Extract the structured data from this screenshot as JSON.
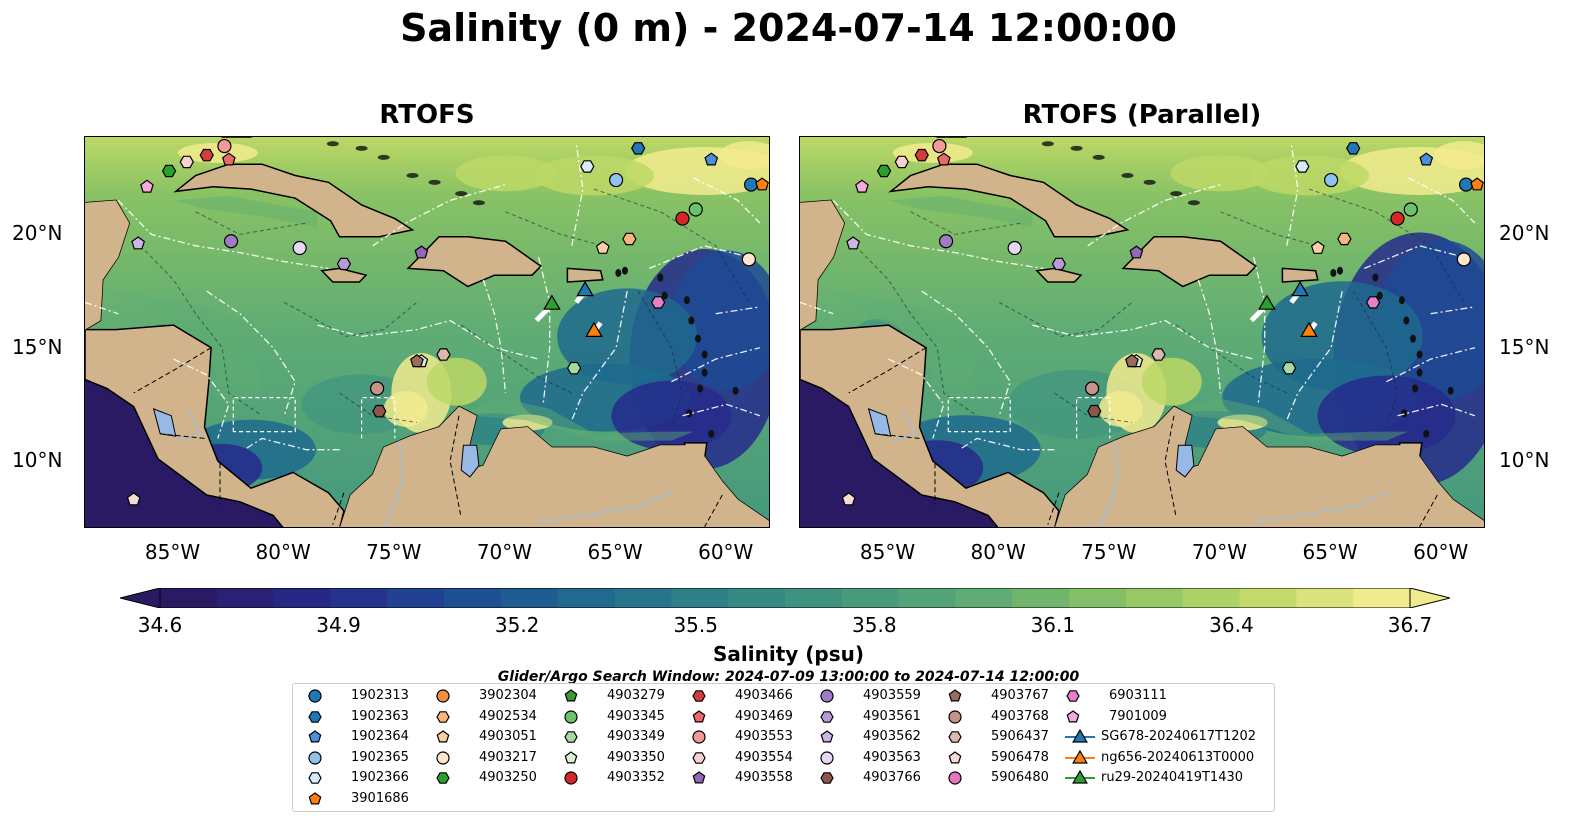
{
  "figure": {
    "title": "Salinity (0 m) - 2024-07-14 12:00:00",
    "panels": [
      {
        "title": "RTOFS"
      },
      {
        "title": "RTOFS (Parallel)"
      }
    ],
    "lon_ticks": [
      "85°W",
      "80°W",
      "75°W",
      "70°W",
      "65°W",
      "60°W"
    ],
    "lat_ticks": [
      "20°N",
      "15°N",
      "10°N"
    ],
    "colorbar": {
      "label": "Salinity (psu)",
      "ticks": [
        "34.6",
        "34.9",
        "35.2",
        "35.5",
        "35.8",
        "36.1",
        "36.4",
        "36.7"
      ],
      "colormap": "haline",
      "colors": [
        "#2a1a64",
        "#262a8c",
        "#1f4a94",
        "#1f6a8e",
        "#2f8486",
        "#44987e",
        "#5fac74",
        "#88c264",
        "#bcd866",
        "#f2eb8e"
      ]
    },
    "search_window": "Glider/Argo Search Window: 2024-07-09 13:00:00 to 2024-07-14 12:00:00",
    "land_color": "#d2b48c"
  },
  "legend": {
    "columns": [
      [
        {
          "label": "1902313",
          "marker": "circle",
          "color": "#1f77b4"
        },
        {
          "label": "1902363",
          "marker": "hexagon",
          "color": "#1f77b4"
        },
        {
          "label": "1902364",
          "marker": "pentagon",
          "color": "#4a90d9"
        },
        {
          "label": "1902365",
          "marker": "circle",
          "color": "#8fc3ef"
        },
        {
          "label": "1902366",
          "marker": "hexagon",
          "color": "#d6ecfb"
        },
        {
          "label": "3901686",
          "marker": "pentagon",
          "color": "#ff7f0e"
        }
      ],
      [
        {
          "label": "3902304",
          "marker": "circle",
          "color": "#f0923d"
        },
        {
          "label": "4902534",
          "marker": "hexagon",
          "color": "#fbb47a"
        },
        {
          "label": "4903051",
          "marker": "pentagon",
          "color": "#fdd0a2"
        },
        {
          "label": "4903217",
          "marker": "circle",
          "color": "#fee6ce"
        },
        {
          "label": "4903250",
          "marker": "hexagon",
          "color": "#2ca02c"
        }
      ],
      [
        {
          "label": "4903279",
          "marker": "pentagon",
          "color": "#3a9a3a"
        },
        {
          "label": "4903345",
          "marker": "circle",
          "color": "#6cc26c"
        },
        {
          "label": "4903349",
          "marker": "hexagon",
          "color": "#a6dba0"
        },
        {
          "label": "4903350",
          "marker": "pentagon",
          "color": "#d9f0d3"
        },
        {
          "label": "4903352",
          "marker": "circle",
          "color": "#d62728"
        }
      ],
      [
        {
          "label": "4903466",
          "marker": "hexagon",
          "color": "#d43d3d"
        },
        {
          "label": "4903469",
          "marker": "pentagon",
          "color": "#e86a6a"
        },
        {
          "label": "4903553",
          "marker": "circle",
          "color": "#f29a9a"
        },
        {
          "label": "4903554",
          "marker": "hexagon",
          "color": "#fbd0d0"
        },
        {
          "label": "4903558",
          "marker": "pentagon",
          "color": "#9467bd"
        }
      ],
      [
        {
          "label": "4903559",
          "marker": "circle",
          "color": "#a07cc6"
        },
        {
          "label": "4903561",
          "marker": "hexagon",
          "color": "#b89ad6"
        },
        {
          "label": "4903562",
          "marker": "pentagon",
          "color": "#cdb6e6"
        },
        {
          "label": "4903563",
          "marker": "circle",
          "color": "#e6d8f5"
        },
        {
          "label": "4903766",
          "marker": "hexagon",
          "color": "#8c564b"
        }
      ],
      [
        {
          "label": "4903767",
          "marker": "pentagon",
          "color": "#9c6b60"
        },
        {
          "label": "4903768",
          "marker": "circle",
          "color": "#c4948a"
        },
        {
          "label": "5906437",
          "marker": "hexagon",
          "color": "#ddb8ae"
        },
        {
          "label": "5906478",
          "marker": "pentagon",
          "color": "#f3dcd6"
        },
        {
          "label": "5906480",
          "marker": "circle",
          "color": "#e377c2"
        }
      ],
      [
        {
          "label": "6903111",
          "marker": "hexagon",
          "color": "#e57fc6"
        },
        {
          "label": "7901009",
          "marker": "pentagon",
          "color": "#f7a8dc"
        },
        {
          "label": "SG678-20240617T1202",
          "marker": "triangle",
          "color": "#1f77b4"
        },
        {
          "label": "ng656-20240613T0000",
          "marker": "triangle",
          "color": "#ff7f0e"
        },
        {
          "label": "ru29-20240419T1430",
          "marker": "triangle",
          "color": "#2ca02c"
        }
      ]
    ]
  },
  "floats": [
    {
      "lon": -85.2,
      "lat": 22.8,
      "marker": "hexagon",
      "color": "#2ca02c"
    },
    {
      "lon": -84.4,
      "lat": 23.2,
      "marker": "hexagon",
      "color": "#fbd0d0"
    },
    {
      "lon": -83.5,
      "lat": 23.5,
      "marker": "hexagon",
      "color": "#d43d3d"
    },
    {
      "lon": -82.7,
      "lat": 23.9,
      "marker": "circle",
      "color": "#f29a9a"
    },
    {
      "lon": -82.5,
      "lat": 23.3,
      "marker": "pentagon",
      "color": "#e86a6a"
    },
    {
      "lon": -86.2,
      "lat": 22.1,
      "marker": "pentagon",
      "color": "#f7a8dc"
    },
    {
      "lon": -86.6,
      "lat": 19.6,
      "marker": "pentagon",
      "color": "#cdb6e6"
    },
    {
      "lon": -82.4,
      "lat": 19.7,
      "marker": "circle",
      "color": "#a07cc6"
    },
    {
      "lon": -79.3,
      "lat": 19.4,
      "marker": "circle",
      "color": "#e6d8f5"
    },
    {
      "lon": -77.3,
      "lat": 18.7,
      "marker": "hexagon",
      "color": "#b89ad6"
    },
    {
      "lon": -73.8,
      "lat": 19.2,
      "marker": "pentagon",
      "color": "#9467bd"
    },
    {
      "lon": -66.3,
      "lat": 23.0,
      "marker": "hexagon",
      "color": "#d6ecfb"
    },
    {
      "lon": -65.0,
      "lat": 22.4,
      "marker": "circle",
      "color": "#8fc3ef"
    },
    {
      "lon": -64.0,
      "lat": 23.8,
      "marker": "hexagon",
      "color": "#1f77b4"
    },
    {
      "lon": -60.7,
      "lat": 23.3,
      "marker": "pentagon",
      "color": "#4a90d9"
    },
    {
      "lon": -58.9,
      "lat": 22.2,
      "marker": "circle",
      "color": "#1f77b4"
    },
    {
      "lon": -58.4,
      "lat": 22.2,
      "marker": "pentagon",
      "color": "#ff7f0e"
    },
    {
      "lon": -61.4,
      "lat": 21.1,
      "marker": "circle",
      "color": "#6cc26c"
    },
    {
      "lon": -62.0,
      "lat": 20.7,
      "marker": "circle",
      "color": "#d62728"
    },
    {
      "lon": -64.4,
      "lat": 19.8,
      "marker": "hexagon",
      "color": "#fbb47a"
    },
    {
      "lon": -65.6,
      "lat": 19.4,
      "marker": "pentagon",
      "color": "#fdd0a2"
    },
    {
      "lon": -59.0,
      "lat": 18.9,
      "marker": "circle",
      "color": "#fee6ce"
    },
    {
      "lon": -63.1,
      "lat": 17.0,
      "marker": "hexagon",
      "color": "#e57fc6"
    },
    {
      "lon": -66.9,
      "lat": 14.1,
      "marker": "hexagon",
      "color": "#a6dba0"
    },
    {
      "lon": -72.8,
      "lat": 14.7,
      "marker": "hexagon",
      "color": "#ddb8ae"
    },
    {
      "lon": -73.8,
      "lat": 14.4,
      "marker": "pentagon",
      "color": "#d9f0d3"
    },
    {
      "lon": -74.0,
      "lat": 14.4,
      "marker": "pentagon",
      "color": "#9c6b60"
    },
    {
      "lon": -75.8,
      "lat": 13.2,
      "marker": "circle",
      "color": "#c4948a"
    },
    {
      "lon": -75.7,
      "lat": 12.2,
      "marker": "hexagon",
      "color": "#8c564b"
    },
    {
      "lon": -86.8,
      "lat": 8.3,
      "marker": "pentagon",
      "color": "#f3dcd6"
    }
  ],
  "gliders": [
    {
      "lon": -67.9,
      "lat": 16.9,
      "color": "#2ca02c"
    },
    {
      "lon": -66.4,
      "lat": 17.5,
      "color": "#1f77b4"
    },
    {
      "lon": -66.0,
      "lat": 15.7,
      "color": "#ff7f0e"
    }
  ]
}
